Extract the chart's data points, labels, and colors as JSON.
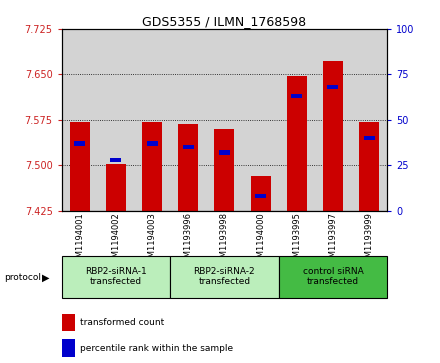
{
  "title": "GDS5355 / ILMN_1768598",
  "samples": [
    "GSM1194001",
    "GSM1194002",
    "GSM1194003",
    "GSM1193996",
    "GSM1193998",
    "GSM1194000",
    "GSM1193995",
    "GSM1193997",
    "GSM1193999"
  ],
  "transformed_counts": [
    7.572,
    7.502,
    7.572,
    7.568,
    7.56,
    7.482,
    7.648,
    7.672,
    7.572
  ],
  "percentile_ranks": [
    37,
    28,
    37,
    35,
    32,
    8,
    63,
    68,
    40
  ],
  "ylim_left": [
    7.425,
    7.725
  ],
  "ylim_right": [
    0,
    100
  ],
  "yticks_left": [
    7.425,
    7.5,
    7.575,
    7.65,
    7.725
  ],
  "yticks_right": [
    0,
    25,
    50,
    75,
    100
  ],
  "bar_color": "#cc0000",
  "percentile_color": "#0000cc",
  "col_bg_color": "#d3d3d3",
  "groups": [
    {
      "label": "RBP2-siRNA-1\ntransfected",
      "indices": [
        0,
        1,
        2
      ],
      "color": "#bbeebb"
    },
    {
      "label": "RBP2-siRNA-2\ntransfected",
      "indices": [
        3,
        4,
        5
      ],
      "color": "#bbeebb"
    },
    {
      "label": "control siRNA\ntransfected",
      "indices": [
        6,
        7,
        8
      ],
      "color": "#44bb44"
    }
  ],
  "legend_items": [
    {
      "label": "transformed count",
      "color": "#cc0000"
    },
    {
      "label": "percentile rank within the sample",
      "color": "#0000cc"
    }
  ],
  "protocol_label": "protocol",
  "bar_width": 0.55
}
